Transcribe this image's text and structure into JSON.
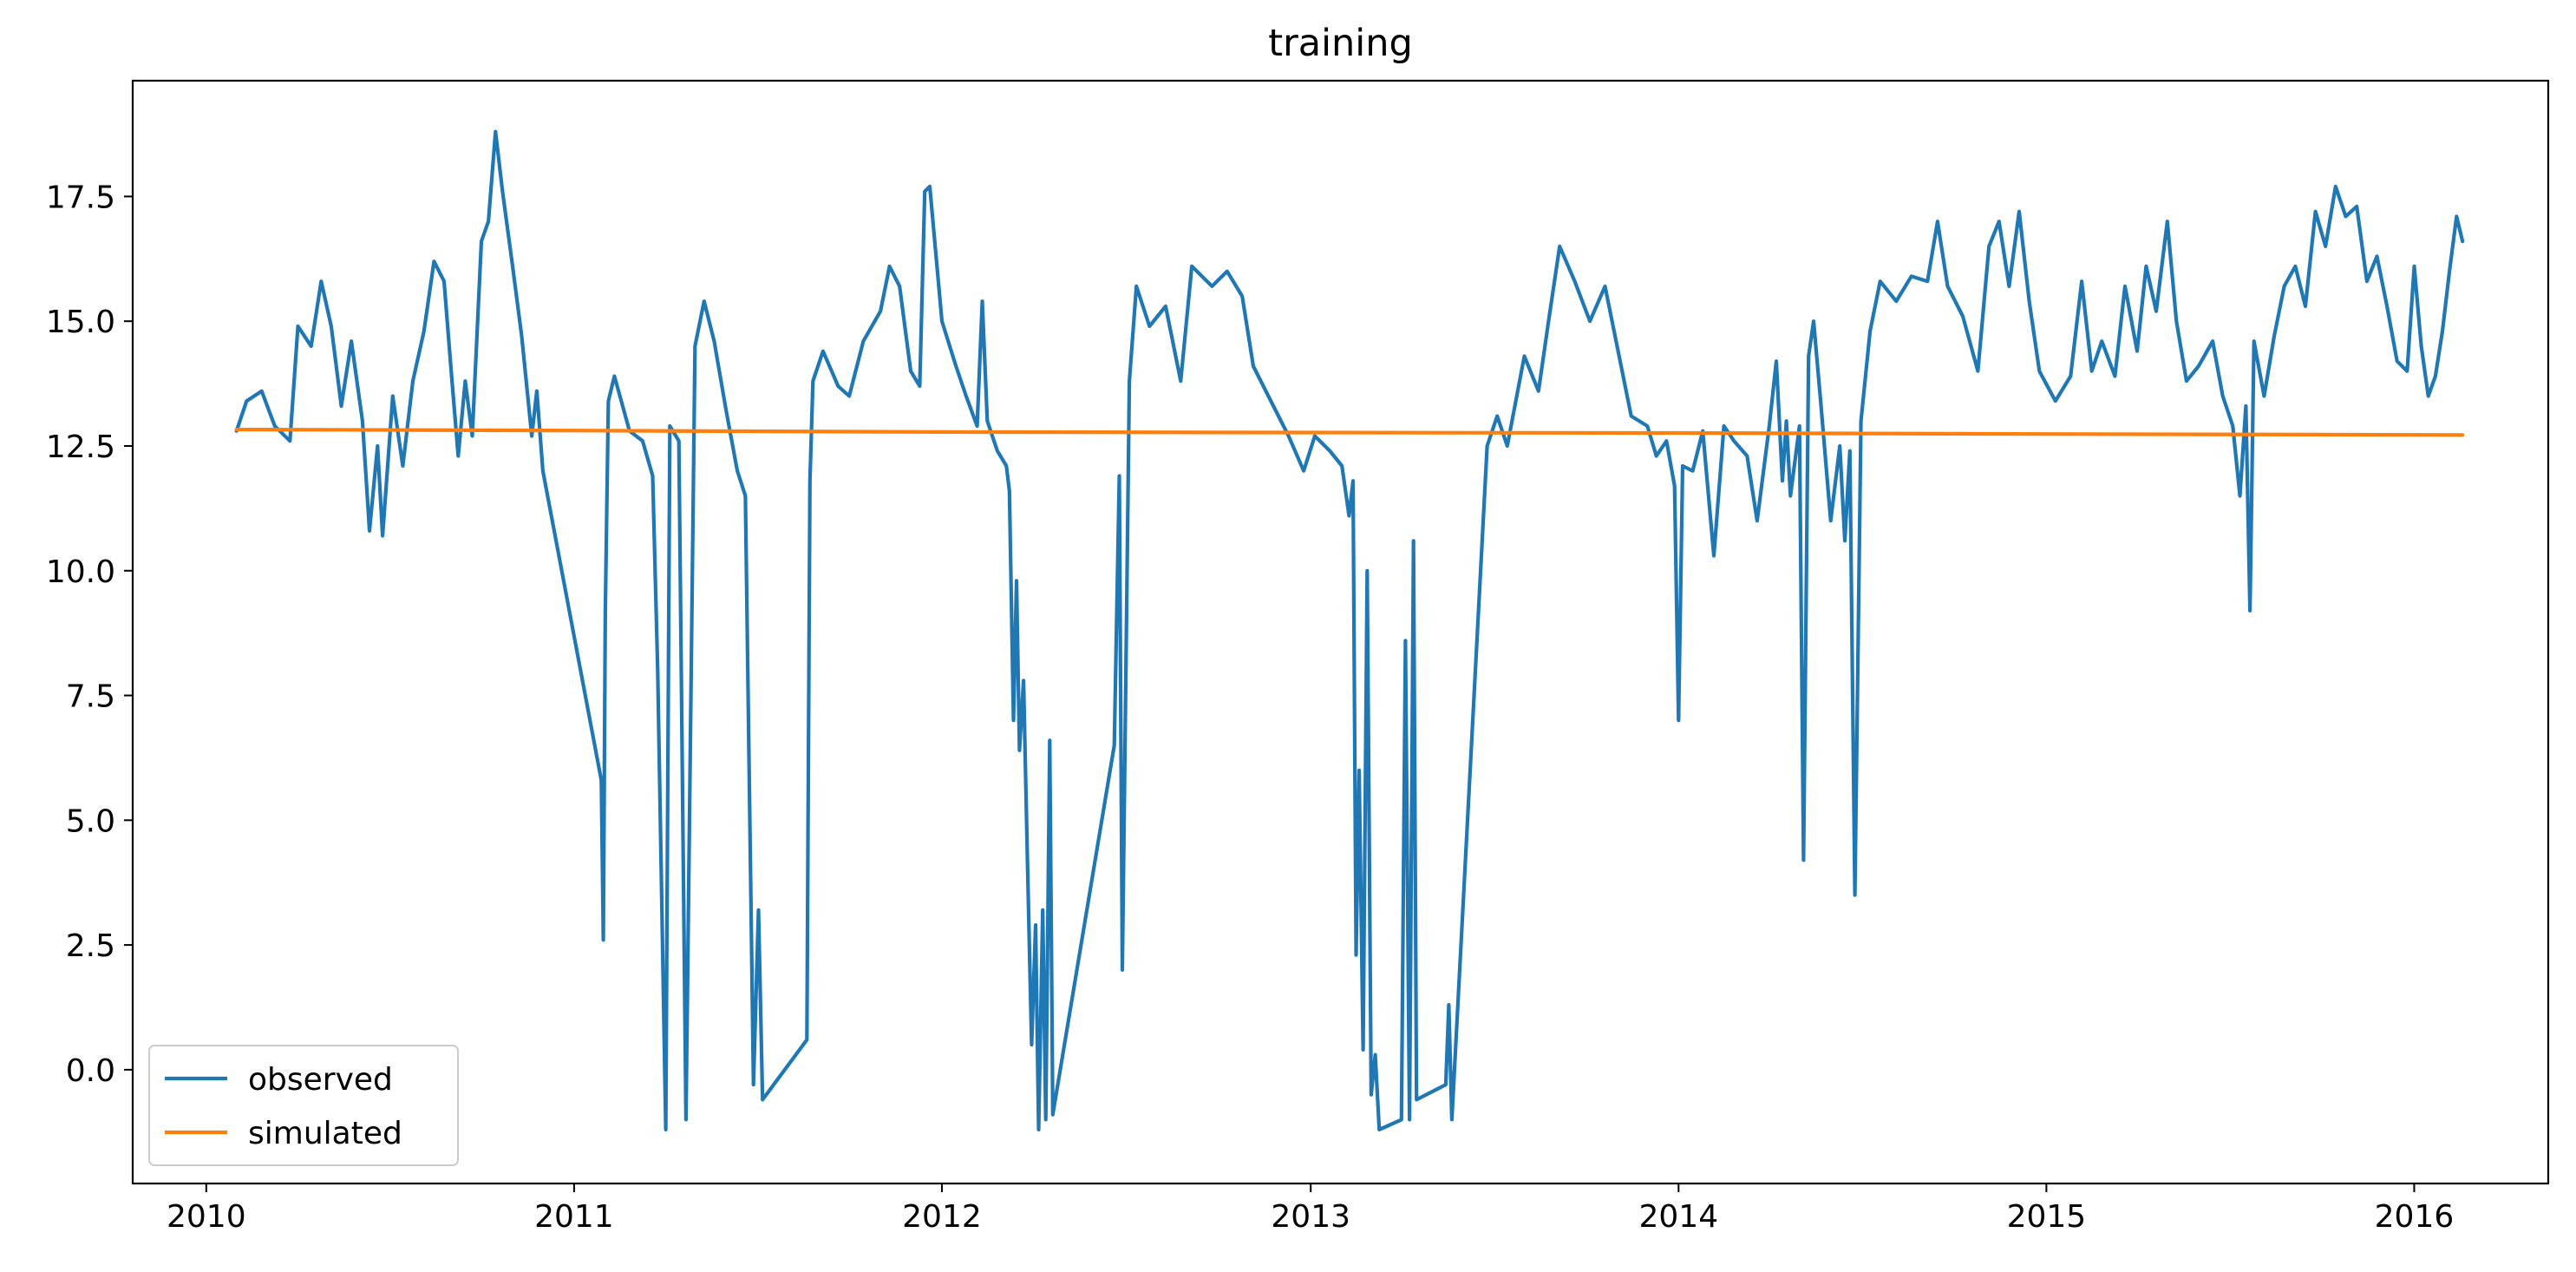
{
  "chart_data": {
    "type": "line",
    "title": "training",
    "xlabel": "",
    "ylabel": "",
    "x_axis": {
      "type": "date",
      "ticks": [
        "2010",
        "2011",
        "2012",
        "2013",
        "2014",
        "2015",
        "2016"
      ],
      "range": [
        "2009-10-20",
        "2016-05-13"
      ]
    },
    "y_axis": {
      "ticks": [
        "0.0",
        "2.5",
        "5.0",
        "7.5",
        "10.0",
        "12.5",
        "15.0",
        "17.5"
      ],
      "range": [
        -2.28,
        19.82
      ]
    },
    "grid": false,
    "legend": {
      "placement": "lower-left"
    },
    "series": [
      {
        "name": "observed",
        "color": "#1f77b4",
        "points": [
          [
            "2010-01-31",
            12.8
          ],
          [
            "2010-02-10",
            13.4
          ],
          [
            "2010-02-25",
            13.6
          ],
          [
            "2010-03-10",
            12.9
          ],
          [
            "2010-03-25",
            12.6
          ],
          [
            "2010-04-02",
            14.9
          ],
          [
            "2010-04-15",
            14.5
          ],
          [
            "2010-04-25",
            15.8
          ],
          [
            "2010-05-05",
            14.9
          ],
          [
            "2010-05-15",
            13.3
          ],
          [
            "2010-05-25",
            14.6
          ],
          [
            "2010-06-05",
            13.0
          ],
          [
            "2010-06-12",
            10.8
          ],
          [
            "2010-06-20",
            12.5
          ],
          [
            "2010-06-25",
            10.7
          ],
          [
            "2010-07-05",
            13.5
          ],
          [
            "2010-07-15",
            12.1
          ],
          [
            "2010-07-25",
            13.8
          ],
          [
            "2010-08-05",
            14.8
          ],
          [
            "2010-08-15",
            16.2
          ],
          [
            "2010-08-25",
            15.8
          ],
          [
            "2010-09-01",
            14.0
          ],
          [
            "2010-09-08",
            12.3
          ],
          [
            "2010-09-15",
            13.8
          ],
          [
            "2010-09-22",
            12.7
          ],
          [
            "2010-10-01",
            16.6
          ],
          [
            "2010-10-08",
            17.0
          ],
          [
            "2010-10-15",
            18.8
          ],
          [
            "2010-10-22",
            17.6
          ],
          [
            "2010-11-01",
            16.1
          ],
          [
            "2010-11-10",
            14.7
          ],
          [
            "2010-11-20",
            12.7
          ],
          [
            "2010-11-25",
            13.6
          ],
          [
            "2010-12-01",
            12.0
          ],
          [
            "2011-01-28",
            5.8
          ],
          [
            "2011-01-30",
            2.6
          ],
          [
            "2011-02-01",
            9.2
          ],
          [
            "2011-02-04",
            13.4
          ],
          [
            "2011-02-10",
            13.9
          ],
          [
            "2011-02-25",
            12.8
          ],
          [
            "2011-03-10",
            12.6
          ],
          [
            "2011-03-20",
            11.9
          ],
          [
            "2011-03-25",
            8.0
          ],
          [
            "2011-04-02",
            -1.2
          ],
          [
            "2011-04-06",
            12.9
          ],
          [
            "2011-04-15",
            12.6
          ],
          [
            "2011-04-22",
            -1.0
          ],
          [
            "2011-05-01",
            14.5
          ],
          [
            "2011-05-10",
            15.4
          ],
          [
            "2011-05-20",
            14.6
          ],
          [
            "2011-06-01",
            13.2
          ],
          [
            "2011-06-12",
            12.0
          ],
          [
            "2011-06-20",
            11.5
          ],
          [
            "2011-06-28",
            -0.3
          ],
          [
            "2011-07-03",
            3.2
          ],
          [
            "2011-07-07",
            -0.6
          ],
          [
            "2011-08-20",
            0.6
          ],
          [
            "2011-08-23",
            11.8
          ],
          [
            "2011-08-26",
            13.8
          ],
          [
            "2011-09-05",
            14.4
          ],
          [
            "2011-09-20",
            13.7
          ],
          [
            "2011-10-01",
            13.5
          ],
          [
            "2011-10-15",
            14.6
          ],
          [
            "2011-11-01",
            15.2
          ],
          [
            "2011-11-10",
            16.1
          ],
          [
            "2011-11-20",
            15.7
          ],
          [
            "2011-12-01",
            14.0
          ],
          [
            "2011-12-10",
            13.7
          ],
          [
            "2011-12-15",
            17.6
          ],
          [
            "2011-12-20",
            17.7
          ],
          [
            "2012-01-01",
            15.0
          ],
          [
            "2012-01-15",
            14.1
          ],
          [
            "2012-01-25",
            13.5
          ],
          [
            "2012-02-05",
            12.9
          ],
          [
            "2012-02-10",
            15.4
          ],
          [
            "2012-02-15",
            13.0
          ],
          [
            "2012-02-25",
            12.4
          ],
          [
            "2012-03-05",
            12.1
          ],
          [
            "2012-03-08",
            11.6
          ],
          [
            "2012-03-12",
            7.0
          ],
          [
            "2012-03-15",
            9.8
          ],
          [
            "2012-03-18",
            6.4
          ],
          [
            "2012-03-22",
            7.8
          ],
          [
            "2012-03-26",
            4.1
          ],
          [
            "2012-03-30",
            0.5
          ],
          [
            "2012-04-03",
            2.9
          ],
          [
            "2012-04-06",
            -1.2
          ],
          [
            "2012-04-10",
            3.2
          ],
          [
            "2012-04-13",
            -1.0
          ],
          [
            "2012-04-17",
            6.6
          ],
          [
            "2012-04-20",
            -0.9
          ],
          [
            "2012-06-20",
            6.5
          ],
          [
            "2012-06-25",
            11.9
          ],
          [
            "2012-06-28",
            2.0
          ],
          [
            "2012-07-05",
            13.8
          ],
          [
            "2012-07-12",
            15.7
          ],
          [
            "2012-07-25",
            14.9
          ],
          [
            "2012-08-10",
            15.3
          ],
          [
            "2012-08-25",
            13.8
          ],
          [
            "2012-09-05",
            16.1
          ],
          [
            "2012-09-25",
            15.7
          ],
          [
            "2012-10-10",
            16.0
          ],
          [
            "2012-10-25",
            15.5
          ],
          [
            "2012-11-05",
            14.1
          ],
          [
            "2012-11-25",
            13.3
          ],
          [
            "2012-12-10",
            12.7
          ],
          [
            "2012-12-25",
            12.0
          ],
          [
            "2013-01-05",
            12.7
          ],
          [
            "2013-01-20",
            12.4
          ],
          [
            "2013-02-01",
            12.1
          ],
          [
            "2013-02-08",
            11.1
          ],
          [
            "2013-02-12",
            11.8
          ],
          [
            "2013-02-15",
            2.3
          ],
          [
            "2013-02-18",
            6.0
          ],
          [
            "2013-02-22",
            0.4
          ],
          [
            "2013-02-26",
            10.0
          ],
          [
            "2013-03-02",
            -0.5
          ],
          [
            "2013-03-06",
            0.3
          ],
          [
            "2013-03-10",
            -1.2
          ],
          [
            "2013-04-01",
            -1.0
          ],
          [
            "2013-04-05",
            8.6
          ],
          [
            "2013-04-09",
            -1.0
          ],
          [
            "2013-04-13",
            10.6
          ],
          [
            "2013-04-16",
            -0.6
          ],
          [
            "2013-05-15",
            -0.3
          ],
          [
            "2013-05-18",
            1.3
          ],
          [
            "2013-05-21",
            -1.0
          ],
          [
            "2013-06-25",
            12.5
          ],
          [
            "2013-07-05",
            13.1
          ],
          [
            "2013-07-15",
            12.5
          ],
          [
            "2013-08-01",
            14.3
          ],
          [
            "2013-08-15",
            13.6
          ],
          [
            "2013-08-25",
            15.0
          ],
          [
            "2013-09-05",
            16.5
          ],
          [
            "2013-09-20",
            15.8
          ],
          [
            "2013-10-05",
            15.0
          ],
          [
            "2013-10-20",
            15.7
          ],
          [
            "2013-11-05",
            14.1
          ],
          [
            "2013-11-15",
            13.1
          ],
          [
            "2013-12-01",
            12.9
          ],
          [
            "2013-12-10",
            12.3
          ],
          [
            "2013-12-20",
            12.6
          ],
          [
            "2013-12-28",
            11.7
          ],
          [
            "2014-01-01",
            7.0
          ],
          [
            "2014-01-05",
            12.1
          ],
          [
            "2014-01-15",
            12.0
          ],
          [
            "2014-01-25",
            12.8
          ],
          [
            "2014-02-05",
            10.3
          ],
          [
            "2014-02-15",
            12.9
          ],
          [
            "2014-02-25",
            12.6
          ],
          [
            "2014-03-10",
            12.3
          ],
          [
            "2014-03-20",
            11.0
          ],
          [
            "2014-04-01",
            12.9
          ],
          [
            "2014-04-08",
            14.2
          ],
          [
            "2014-04-14",
            11.8
          ],
          [
            "2014-04-18",
            13.0
          ],
          [
            "2014-04-22",
            11.5
          ],
          [
            "2014-05-01",
            12.9
          ],
          [
            "2014-05-05",
            4.2
          ],
          [
            "2014-05-10",
            14.3
          ],
          [
            "2014-05-15",
            15.0
          ],
          [
            "2014-05-22",
            13.4
          ],
          [
            "2014-06-01",
            11.0
          ],
          [
            "2014-06-10",
            12.5
          ],
          [
            "2014-06-15",
            10.6
          ],
          [
            "2014-06-20",
            12.4
          ],
          [
            "2014-06-25",
            3.5
          ],
          [
            "2014-07-01",
            13.0
          ],
          [
            "2014-07-10",
            14.8
          ],
          [
            "2014-07-20",
            15.8
          ],
          [
            "2014-08-05",
            15.4
          ],
          [
            "2014-08-20",
            15.9
          ],
          [
            "2014-09-05",
            15.8
          ],
          [
            "2014-09-15",
            17.0
          ],
          [
            "2014-09-25",
            15.7
          ],
          [
            "2014-10-10",
            15.1
          ],
          [
            "2014-10-25",
            14.0
          ],
          [
            "2014-11-05",
            16.5
          ],
          [
            "2014-11-15",
            17.0
          ],
          [
            "2014-11-25",
            15.7
          ],
          [
            "2014-12-05",
            17.2
          ],
          [
            "2014-12-15",
            15.4
          ],
          [
            "2014-12-25",
            14.0
          ],
          [
            "2015-01-10",
            13.4
          ],
          [
            "2015-01-25",
            13.9
          ],
          [
            "2015-02-05",
            15.8
          ],
          [
            "2015-02-15",
            14.0
          ],
          [
            "2015-02-25",
            14.6
          ],
          [
            "2015-03-10",
            13.9
          ],
          [
            "2015-03-20",
            15.7
          ],
          [
            "2015-04-01",
            14.4
          ],
          [
            "2015-04-10",
            16.1
          ],
          [
            "2015-04-20",
            15.2
          ],
          [
            "2015-05-01",
            17.0
          ],
          [
            "2015-05-10",
            15.0
          ],
          [
            "2015-05-20",
            13.8
          ],
          [
            "2015-06-01",
            14.1
          ],
          [
            "2015-06-15",
            14.6
          ],
          [
            "2015-06-25",
            13.5
          ],
          [
            "2015-07-05",
            12.9
          ],
          [
            "2015-07-12",
            11.5
          ],
          [
            "2015-07-18",
            13.3
          ],
          [
            "2015-07-22",
            9.2
          ],
          [
            "2015-07-26",
            14.6
          ],
          [
            "2015-08-05",
            13.5
          ],
          [
            "2015-08-15",
            14.7
          ],
          [
            "2015-08-25",
            15.7
          ],
          [
            "2015-09-05",
            16.1
          ],
          [
            "2015-09-15",
            15.3
          ],
          [
            "2015-09-25",
            17.2
          ],
          [
            "2015-10-05",
            16.5
          ],
          [
            "2015-10-15",
            17.7
          ],
          [
            "2015-10-25",
            17.1
          ],
          [
            "2015-11-05",
            17.3
          ],
          [
            "2015-11-15",
            15.8
          ],
          [
            "2015-11-25",
            16.3
          ],
          [
            "2015-12-05",
            15.3
          ],
          [
            "2015-12-15",
            14.2
          ],
          [
            "2015-12-25",
            14.0
          ],
          [
            "2016-01-01",
            16.1
          ],
          [
            "2016-01-08",
            14.5
          ],
          [
            "2016-01-15",
            13.5
          ],
          [
            "2016-01-22",
            13.9
          ],
          [
            "2016-01-29",
            14.8
          ],
          [
            "2016-02-05",
            16.0
          ],
          [
            "2016-02-12",
            17.1
          ],
          [
            "2016-02-18",
            16.6
          ]
        ]
      },
      {
        "name": "simulated",
        "color": "#ff7f0e",
        "points": [
          [
            "2010-01-31",
            12.83
          ],
          [
            "2011-01-01",
            12.81
          ],
          [
            "2012-01-01",
            12.78
          ],
          [
            "2013-01-01",
            12.77
          ],
          [
            "2014-01-01",
            12.76
          ],
          [
            "2015-01-01",
            12.74
          ],
          [
            "2016-02-18",
            12.72
          ]
        ]
      }
    ]
  }
}
